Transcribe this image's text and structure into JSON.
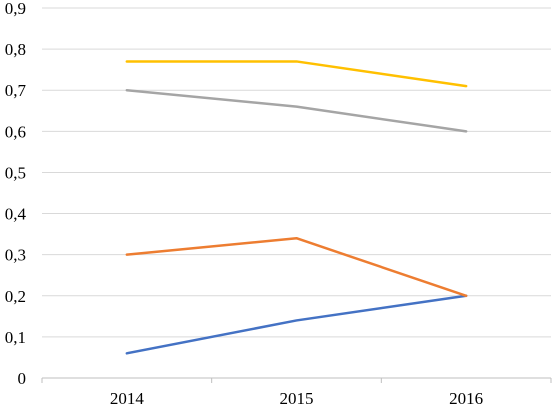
{
  "chart_data": {
    "type": "line",
    "categories": [
      "2014",
      "2015",
      "2016"
    ],
    "ylim": [
      0,
      0.9
    ],
    "y_ticks": [
      "0",
      "0,1",
      "0,2",
      "0,3",
      "0,4",
      "0,5",
      "0,6",
      "0,7",
      "0,8",
      "0,9"
    ],
    "grid": true,
    "legend": "none",
    "series": [
      {
        "values": [
          0.06,
          0.14,
          0.2
        ],
        "color": "#4472c4"
      },
      {
        "values": [
          0.3,
          0.34,
          0.2
        ],
        "color": "#ed7d31"
      },
      {
        "values": [
          0.7,
          0.66,
          0.6
        ],
        "color": "#a5a5a5"
      },
      {
        "values": [
          0.77,
          0.77,
          0.71
        ],
        "color": "#ffc000"
      }
    ]
  }
}
